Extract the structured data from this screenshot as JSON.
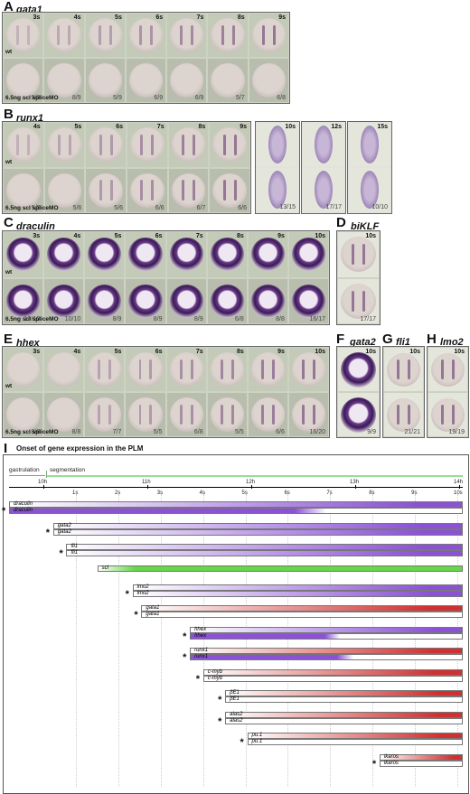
{
  "panels": {
    "A": {
      "letter": "A",
      "gene": "gata1",
      "stages": [
        "3s",
        "4s",
        "5s",
        "6s",
        "7s",
        "8s",
        "9s"
      ],
      "ratios": [
        "9/9",
        "8/9",
        "5/9",
        "6/9",
        "6/9",
        "5/7",
        "6/8"
      ],
      "wt": "wt",
      "mo": "6.5ng scl spliceMO"
    },
    "B": {
      "letter": "B",
      "gene": "runx1",
      "stages": [
        "4s",
        "5s",
        "6s",
        "7s",
        "8s",
        "9s"
      ],
      "ratios": [
        "5/5",
        "5/6",
        "5/6",
        "6/6",
        "6/7",
        "6/6"
      ],
      "wt": "wt",
      "mo": "6.5ng scl spliceMO",
      "extra_stages": [
        "10s",
        "12s",
        "15s"
      ],
      "extra_ratios": [
        "13/15",
        "17/17",
        "10/10"
      ]
    },
    "C": {
      "letter": "C",
      "gene": "draculin",
      "stages": [
        "3s",
        "4s",
        "5s",
        "6s",
        "7s",
        "8s",
        "9s",
        "10s"
      ],
      "ratios": [
        "10/10",
        "10/10",
        "8/9",
        "8/9",
        "8/9",
        "6/8",
        "8/8",
        "16/17"
      ],
      "wt": "wt",
      "mo": "6.5ng scl spliceMO"
    },
    "D": {
      "letter": "D",
      "gene": "biKLF",
      "stage": "10s",
      "ratio": "17/17"
    },
    "E": {
      "letter": "E",
      "gene": "hhex",
      "stages": [
        "3s",
        "4s",
        "5s",
        "6s",
        "7s",
        "8s",
        "9s",
        "10s"
      ],
      "ratios": [
        "8/8",
        "8/8",
        "7/7",
        "5/5",
        "6/8",
        "5/5",
        "6/6",
        "16/20"
      ],
      "wt": "wt",
      "mo": "6.5ng scl spliceMO"
    },
    "F": {
      "letter": "F",
      "gene": "gata2",
      "stage": "10s",
      "ratio": "9/9"
    },
    "G": {
      "letter": "G",
      "gene": "fli1",
      "stage": "10s",
      "ratio": "21/21"
    },
    "H": {
      "letter": "H",
      "gene": "lmo2",
      "stage": "10s",
      "ratio": "19/19"
    }
  },
  "timeline": {
    "letter": "I",
    "title": "Onset of gene expression in the PLM",
    "phases": [
      "gastrulation",
      "segmentation"
    ],
    "hours": [
      "10h",
      "11h",
      "12h",
      "13h",
      "14h"
    ],
    "somites": [
      "1s",
      "2s",
      "3s",
      "4s",
      "5s",
      "6s",
      "7s",
      "8s",
      "9s",
      "10s"
    ],
    "genes": [
      {
        "name": "draculin",
        "start_frac": 0.0,
        "color": "#8b52d6",
        "mutant_color": "#8b52d6",
        "mutant_fade": 0.7
      },
      {
        "name": "gata2",
        "start_frac": 0.1,
        "color": "#8b52d6",
        "mutant_color": "#8b52d6",
        "mutant_fade": 1.0
      },
      {
        "name": "fli1",
        "start_frac": 0.13,
        "color": "#8b52d6",
        "mutant_color": "#8b52d6",
        "mutant_fade": 1.0
      },
      {
        "name": "scl",
        "start_frac": 0.2,
        "color": "#66d64a",
        "single": true
      },
      {
        "name": "lmo2",
        "start_frac": 0.28,
        "color": "#8b52d6",
        "mutant_color": "#8b52d6",
        "mutant_fade": 1.0
      },
      {
        "name": "gata1",
        "start_frac": 0.3,
        "color": "#d03030",
        "mutant_color": null
      },
      {
        "name": "hhex",
        "start_frac": 0.41,
        "color": "#8b52d6",
        "mutant_color": "#8b52d6",
        "mutant_fade": 0.55
      },
      {
        "name": "runx1",
        "start_frac": 0.41,
        "color": "#d03030",
        "mutant_color": "#8b52d6",
        "mutant_fade": 0.6
      },
      {
        "name": "c-myb",
        "start_frac": 0.44,
        "color": "#d03030",
        "mutant_color": null
      },
      {
        "name": "βE1",
        "start_frac": 0.49,
        "color": "#d03030",
        "mutant_color": null
      },
      {
        "name": "alas2",
        "start_frac": 0.49,
        "color": "#d03030",
        "mutant_color": null
      },
      {
        "name": "pu.1",
        "start_frac": 0.54,
        "color": "#d03030",
        "mutant_color": null
      },
      {
        "name": "ikaros",
        "start_frac": 0.84,
        "color": "#d03030",
        "mutant_color": null
      }
    ]
  }
}
